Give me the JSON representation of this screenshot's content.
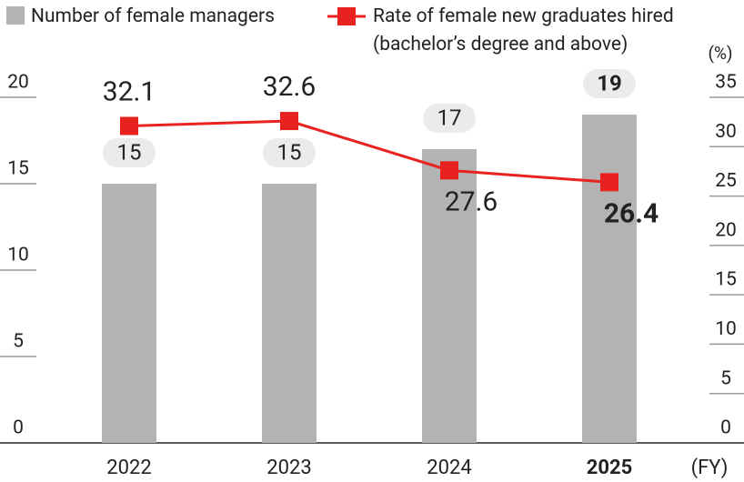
{
  "chart_data": {
    "type": "bar_line",
    "categories": [
      "2022",
      "2023",
      "2024",
      "2025"
    ],
    "x_unit": "(FY)",
    "y2_unit": "(%)",
    "series": [
      {
        "name": "Number of female managers",
        "type": "bar",
        "color": "#b3b3b3",
        "values": [
          15,
          15,
          17,
          19
        ]
      },
      {
        "name": "Rate of female new graduates hired (bachelor’s degree and above)",
        "type": "line",
        "axis": "y2",
        "color": "#e8221f",
        "values": [
          32.1,
          32.6,
          27.6,
          26.4
        ]
      }
    ],
    "ylim": [
      0,
      20
    ],
    "yticks": [
      0,
      5,
      10,
      15,
      20
    ],
    "y2lim": [
      0,
      35
    ],
    "y2ticks": [
      0,
      5,
      10,
      15,
      20,
      25,
      30,
      35
    ]
  }
}
